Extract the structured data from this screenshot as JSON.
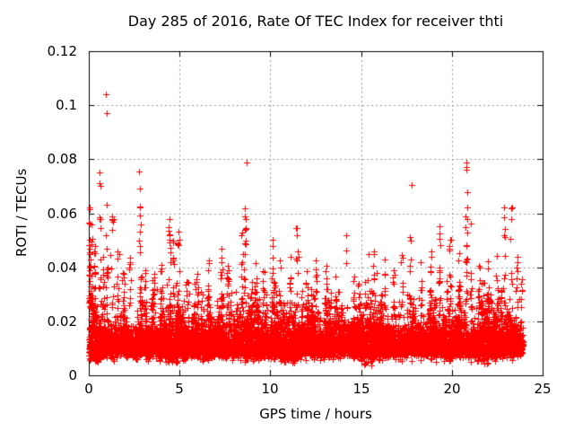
{
  "chart_data": {
    "type": "scatter",
    "title": "Day 285 of 2016, Rate Of TEC Index for receiver thti",
    "xlabel": "GPS time / hours",
    "ylabel": "ROTI / TECUs",
    "xlim": [
      0,
      25
    ],
    "ylim": [
      0,
      0.12
    ],
    "xticks": [
      0,
      5,
      10,
      15,
      20,
      25
    ],
    "xtick_labels": [
      "0",
      "5",
      "10",
      "15",
      "20",
      "25"
    ],
    "yticks": [
      0,
      0.02,
      0.04,
      0.06,
      0.08,
      0.1,
      0.12
    ],
    "ytick_labels": [
      "0",
      "0.02",
      "0.04",
      "0.06",
      "0.08",
      "0.1",
      "0.12"
    ],
    "grid": "dashed-gray-at-all-major-ticks",
    "legend": "none",
    "marker": "plus",
    "marker_size_px": 7,
    "colors": {
      "points": "#ff0000",
      "grid": "#9a9a9a",
      "axis": "#000000",
      "background": "#ffffff"
    },
    "data_extent": {
      "t_min": 0.0,
      "t_max": 23.92,
      "v_min": 0.003,
      "v_max": 0.104
    },
    "baseline_band": {
      "n_points": 8500,
      "v_dense_low": 0.007,
      "v_dense_high": 0.022,
      "v_tail_low": 0.004,
      "v_tail_high": 0.035,
      "v_median": 0.0115,
      "description": "continuous dense band of red + markers across 0-23.9 h with quasi-periodic bursts in the upper envelope"
    },
    "minor_columns": {
      "n_columns": 150,
      "peak_low": 0.022,
      "peak_high": 0.04
    },
    "spike_columns": [
      [
        0.04,
        0.062,
        22
      ],
      [
        0.15,
        0.056,
        16
      ],
      [
        0.35,
        0.048,
        12
      ],
      [
        0.6,
        0.0585,
        10
      ],
      [
        0.8,
        0.044,
        10
      ],
      [
        1.0,
        0.063,
        12
      ],
      [
        1.3,
        0.059,
        14
      ],
      [
        1.6,
        0.046,
        10
      ],
      [
        1.9,
        0.038,
        8
      ],
      [
        2.25,
        0.0435,
        10
      ],
      [
        2.8,
        0.0625,
        10
      ],
      [
        3.1,
        0.039,
        8
      ],
      [
        3.6,
        0.0375,
        8
      ],
      [
        4.0,
        0.041,
        9
      ],
      [
        4.45,
        0.0578,
        16
      ],
      [
        4.65,
        0.05,
        10
      ],
      [
        4.95,
        0.0532,
        12
      ],
      [
        5.4,
        0.0345,
        7
      ],
      [
        6.0,
        0.0375,
        8
      ],
      [
        6.6,
        0.0425,
        9
      ],
      [
        7.3,
        0.047,
        11
      ],
      [
        7.65,
        0.0405,
        8
      ],
      [
        8.45,
        0.053,
        12
      ],
      [
        8.6,
        0.0618,
        16
      ],
      [
        9.2,
        0.0415,
        9
      ],
      [
        9.6,
        0.0385,
        8
      ],
      [
        10.15,
        0.0502,
        12
      ],
      [
        10.5,
        0.0425,
        8
      ],
      [
        11.1,
        0.0438,
        9
      ],
      [
        11.45,
        0.0545,
        13
      ],
      [
        12.0,
        0.0385,
        8
      ],
      [
        12.5,
        0.0425,
        9
      ],
      [
        13.1,
        0.0405,
        8
      ],
      [
        13.6,
        0.0365,
        7
      ],
      [
        14.2,
        0.052,
        5
      ],
      [
        14.6,
        0.0365,
        7
      ],
      [
        15.2,
        0.0345,
        6
      ],
      [
        15.7,
        0.046,
        10
      ],
      [
        16.3,
        0.0428,
        9
      ],
      [
        16.8,
        0.0388,
        8
      ],
      [
        17.25,
        0.0445,
        9
      ],
      [
        17.7,
        0.0512,
        12
      ],
      [
        18.3,
        0.0418,
        8
      ],
      [
        18.85,
        0.046,
        10
      ],
      [
        19.3,
        0.0552,
        13
      ],
      [
        19.9,
        0.0502,
        12
      ],
      [
        20.4,
        0.0452,
        10
      ],
      [
        20.8,
        0.0788,
        22
      ],
      [
        21.05,
        0.0562,
        10
      ],
      [
        21.5,
        0.0405,
        8
      ],
      [
        22.0,
        0.0422,
        8
      ],
      [
        22.5,
        0.0442,
        9
      ],
      [
        22.9,
        0.062,
        13
      ],
      [
        23.3,
        0.062,
        7
      ],
      [
        23.6,
        0.0438,
        8
      ],
      [
        23.85,
        0.0355,
        6
      ]
    ],
    "outliers": [
      [
        0.95,
        0.1042
      ],
      [
        0.98,
        0.0972
      ],
      [
        0.58,
        0.0752
      ],
      [
        0.6,
        0.0712
      ],
      [
        0.62,
        0.07
      ],
      [
        2.78,
        0.0755
      ],
      [
        2.82,
        0.0692
      ],
      [
        8.68,
        0.0787
      ],
      [
        17.78,
        0.0705
      ],
      [
        20.78,
        0.0788
      ],
      [
        20.82,
        0.0762
      ],
      [
        23.28,
        0.0618
      ]
    ]
  }
}
